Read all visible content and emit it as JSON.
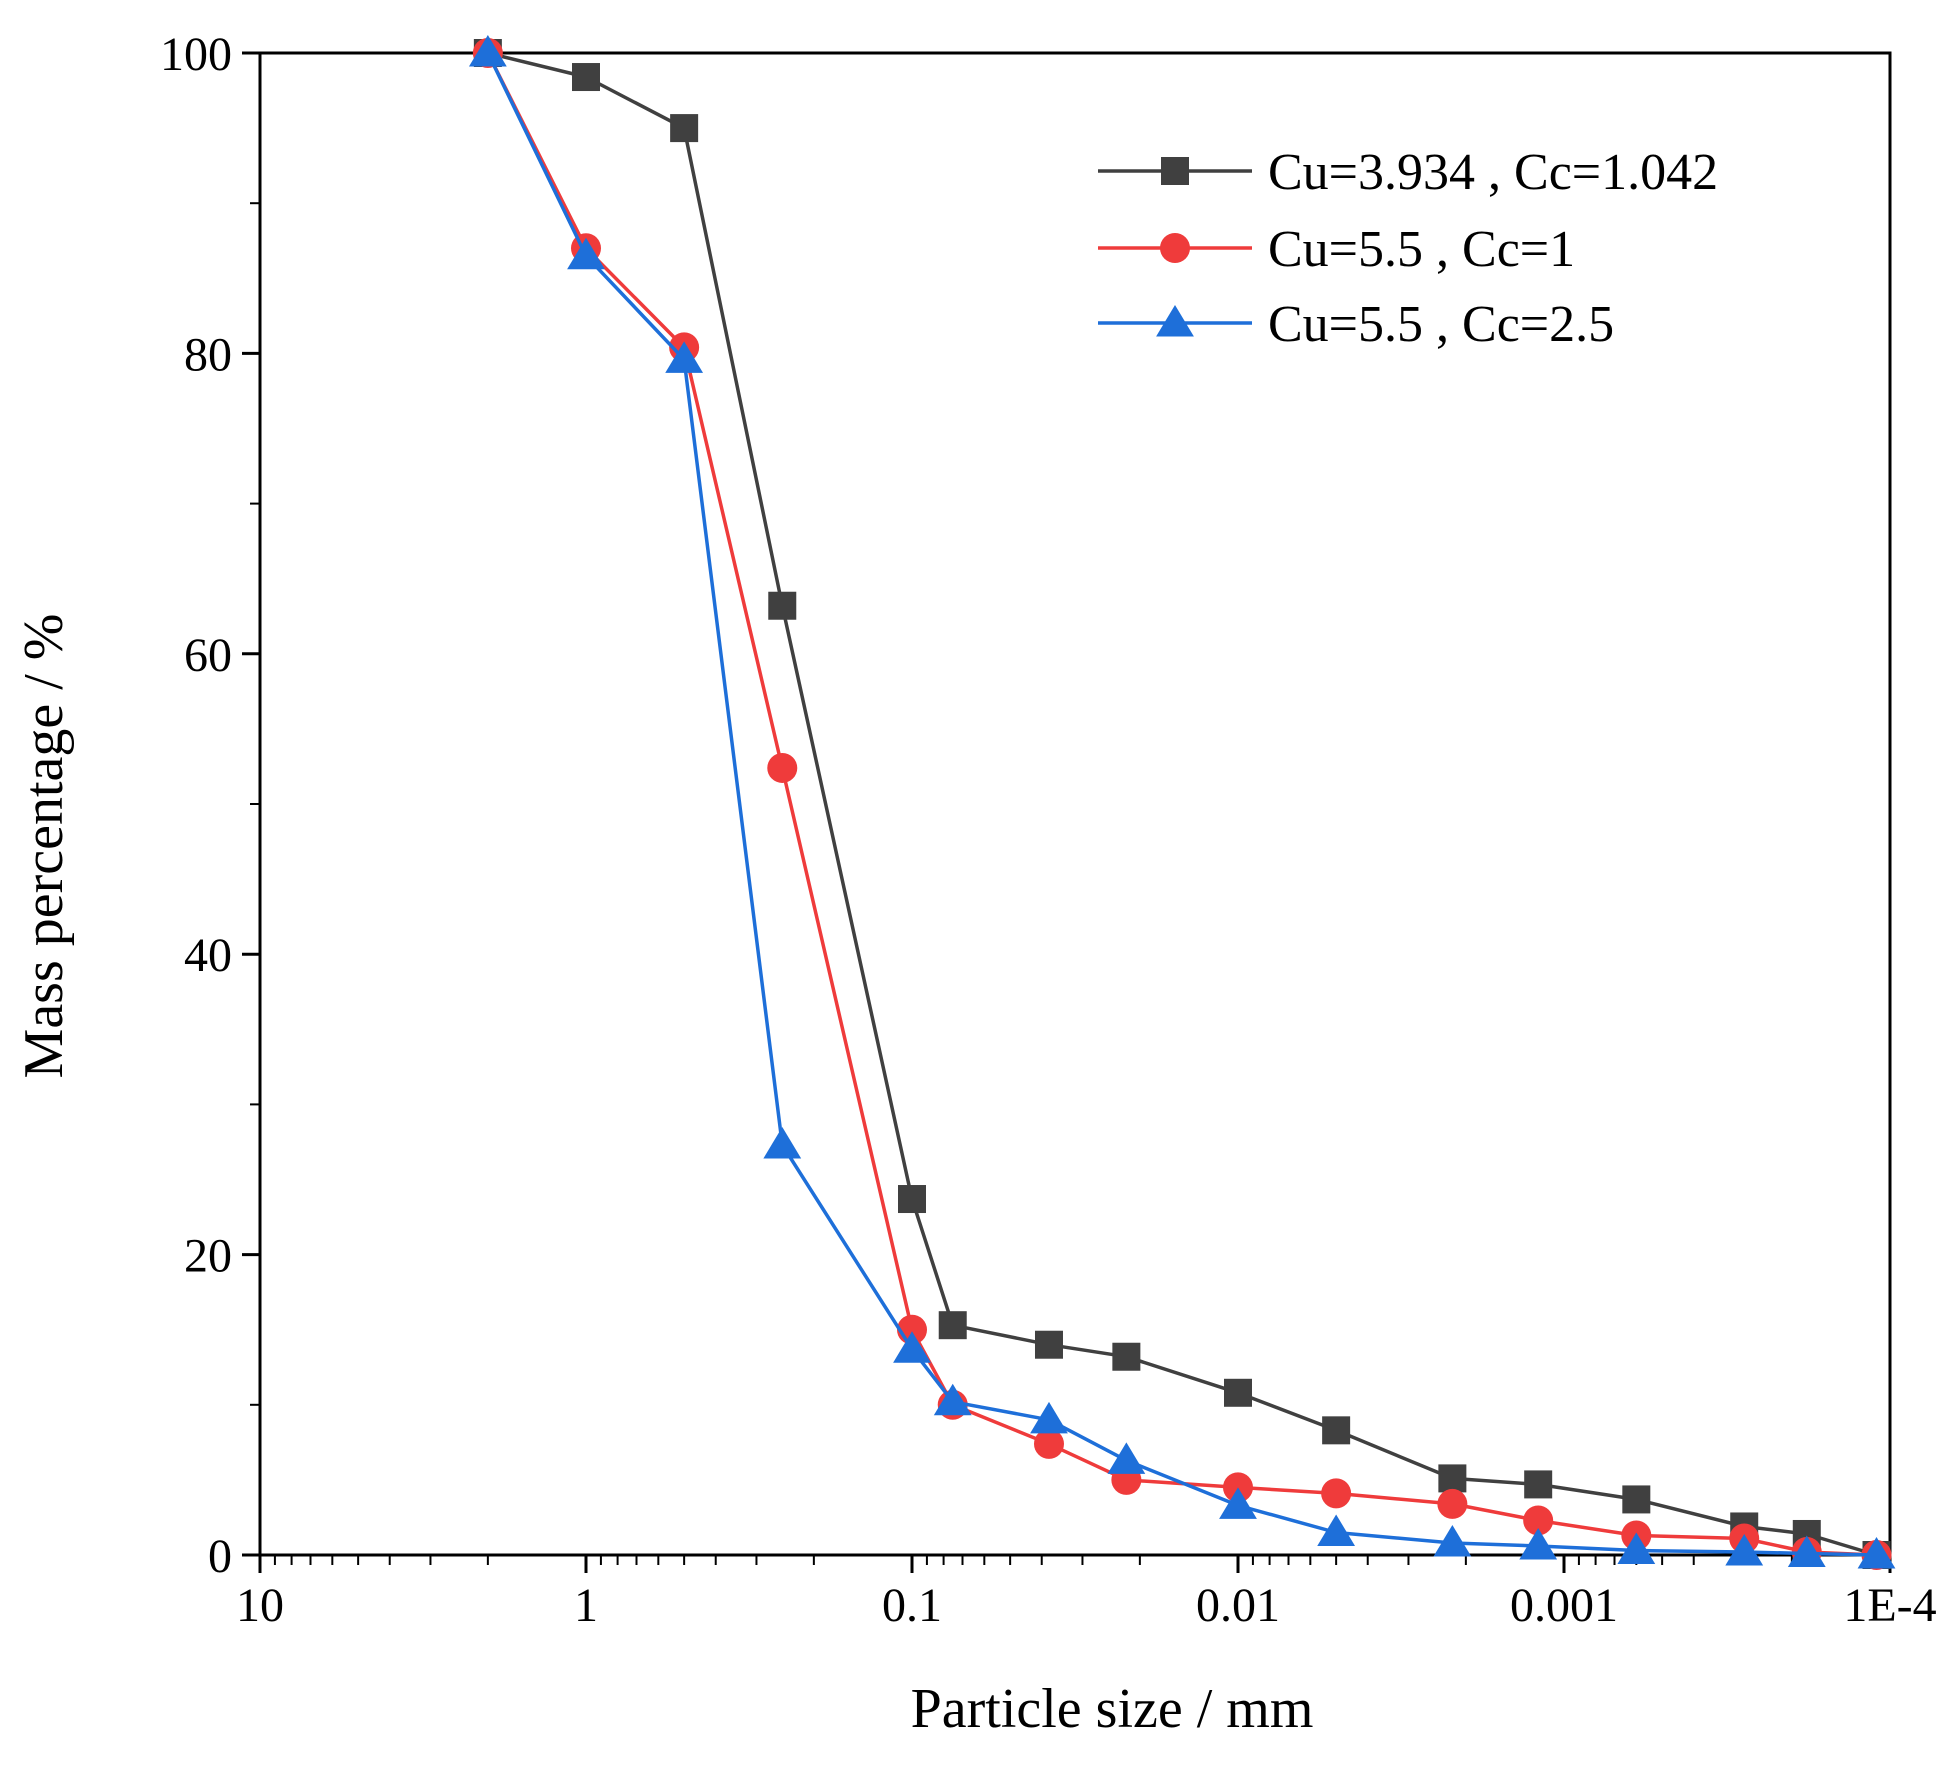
{
  "chart_data": {
    "type": "line",
    "title": "",
    "xlabel": "Particle size / mm",
    "ylabel": "Mass percentage / %",
    "x_scale": "log",
    "x_reversed": true,
    "xlim": [
      10,
      0.0001
    ],
    "ylim": [
      0,
      100
    ],
    "x_ticks": [
      {
        "value": 10,
        "label": "10"
      },
      {
        "value": 1,
        "label": "1"
      },
      {
        "value": 0.1,
        "label": "0.1"
      },
      {
        "value": 0.01,
        "label": "0.01"
      },
      {
        "value": 0.001,
        "label": "0.001"
      },
      {
        "value": 0.0001,
        "label": "1E-4"
      }
    ],
    "y_ticks": [
      {
        "value": 0,
        "label": "0"
      },
      {
        "value": 20,
        "label": "20"
      },
      {
        "value": 40,
        "label": "40"
      },
      {
        "value": 60,
        "label": "60"
      },
      {
        "value": 80,
        "label": "80"
      },
      {
        "value": 100,
        "label": "100"
      }
    ],
    "grid": false,
    "legend_position": "top-right",
    "series": [
      {
        "name": "Cu=3.934 , Cc=1.042",
        "color": "#404040",
        "marker": "square",
        "x": [
          2,
          1,
          0.5,
          0.25,
          0.1,
          0.075,
          0.038,
          0.022,
          0.01,
          0.005,
          0.0022,
          0.0012,
          0.0006,
          0.00028,
          0.00018,
          0.00011
        ],
        "y": [
          100,
          98.4,
          95,
          63.2,
          23.7,
          15.3,
          14,
          13.2,
          10.8,
          8.3,
          5.1,
          4.7,
          3.7,
          1.9,
          1.4,
          0
        ]
      },
      {
        "name": "Cu=5.5 , Cc=1",
        "color": "#ef3b3b",
        "marker": "circle",
        "x": [
          2,
          1,
          0.5,
          0.25,
          0.1,
          0.075,
          0.038,
          0.022,
          0.01,
          0.005,
          0.0022,
          0.0012,
          0.0006,
          0.00028,
          0.00018,
          0.00011
        ],
        "y": [
          100,
          87,
          80.4,
          52.4,
          15,
          10,
          7.4,
          5,
          4.5,
          4.1,
          3.4,
          2.3,
          1.3,
          1.1,
          0.2,
          0
        ]
      },
      {
        "name": "Cu=5.5 , Cc=2.5",
        "color": "#1e6fd9",
        "marker": "triangle",
        "x": [
          2,
          1,
          0.5,
          0.25,
          0.1,
          0.075,
          0.038,
          0.022,
          0.01,
          0.005,
          0.0022,
          0.0012,
          0.0006,
          0.00028,
          0.00018,
          0.00011
        ],
        "y": [
          100,
          86.5,
          79.6,
          27.3,
          13.7,
          10.2,
          9,
          6.3,
          3.3,
          1.5,
          0.8,
          0.6,
          0.3,
          0.2,
          0.1,
          0
        ]
      }
    ]
  }
}
